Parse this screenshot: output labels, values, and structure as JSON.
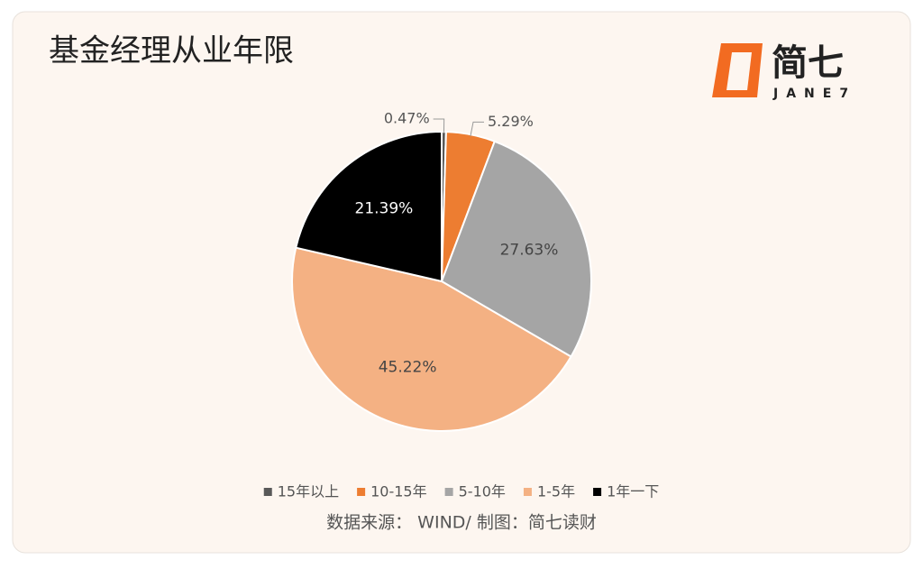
{
  "chart_data": {
    "type": "pie",
    "title": "基金经理从业年限",
    "categories": [
      "15年以上",
      "10-15年",
      "5-10年",
      "1-5年",
      "1年一下"
    ],
    "values": [
      0.47,
      5.29,
      27.63,
      45.22,
      21.39
    ],
    "value_labels": [
      "0.47%",
      "5.29%",
      "27.63%",
      "45.22%",
      "21.39%"
    ],
    "colors": [
      "#595959",
      "#ED7D31",
      "#A5A5A5",
      "#F4B183",
      "#000000"
    ],
    "legend": "bottom",
    "source": "数据来源： WIND/ 制图：简七读财"
  },
  "logo": {
    "name": "简七",
    "latin": "JANE7"
  }
}
